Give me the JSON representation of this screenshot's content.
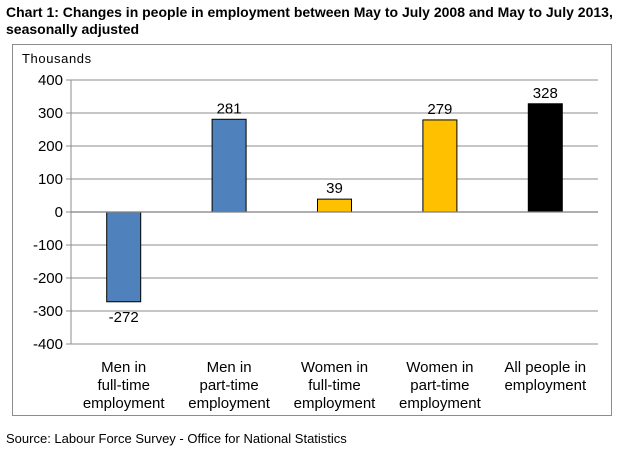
{
  "title": "Chart 1: Changes in people in employment between May to July 2008 and May to July 2013, seasonally adjusted",
  "source": "Source: Labour Force Survey - Office for National Statistics",
  "colors": {
    "blue": "#4f81bd",
    "gold": "#ffc000",
    "black": "#000000",
    "grid": "#8c8c8c"
  },
  "chart_data": {
    "type": "bar",
    "title": "Chart 1: Changes in people in employment between May to July 2008 and May to July 2013, seasonally adjusted",
    "ylabel": "Thousands",
    "xlabel": "",
    "ylim": [
      -400,
      400
    ],
    "yticks": [
      400,
      300,
      200,
      100,
      0,
      -100,
      -200,
      -300,
      -400
    ],
    "grid": true,
    "legend": "none",
    "categories": [
      [
        "Men in",
        "full-time",
        "employment"
      ],
      [
        "Men in",
        "part-time",
        "employment"
      ],
      [
        "Women in",
        "full-time",
        "employment"
      ],
      [
        "Women in",
        "part-time",
        "employment"
      ],
      [
        "All people in",
        "employment"
      ]
    ],
    "values": [
      -272,
      281,
      39,
      279,
      328
    ],
    "bar_colors": [
      "#4f81bd",
      "#4f81bd",
      "#ffc000",
      "#ffc000",
      "#000000"
    ]
  }
}
